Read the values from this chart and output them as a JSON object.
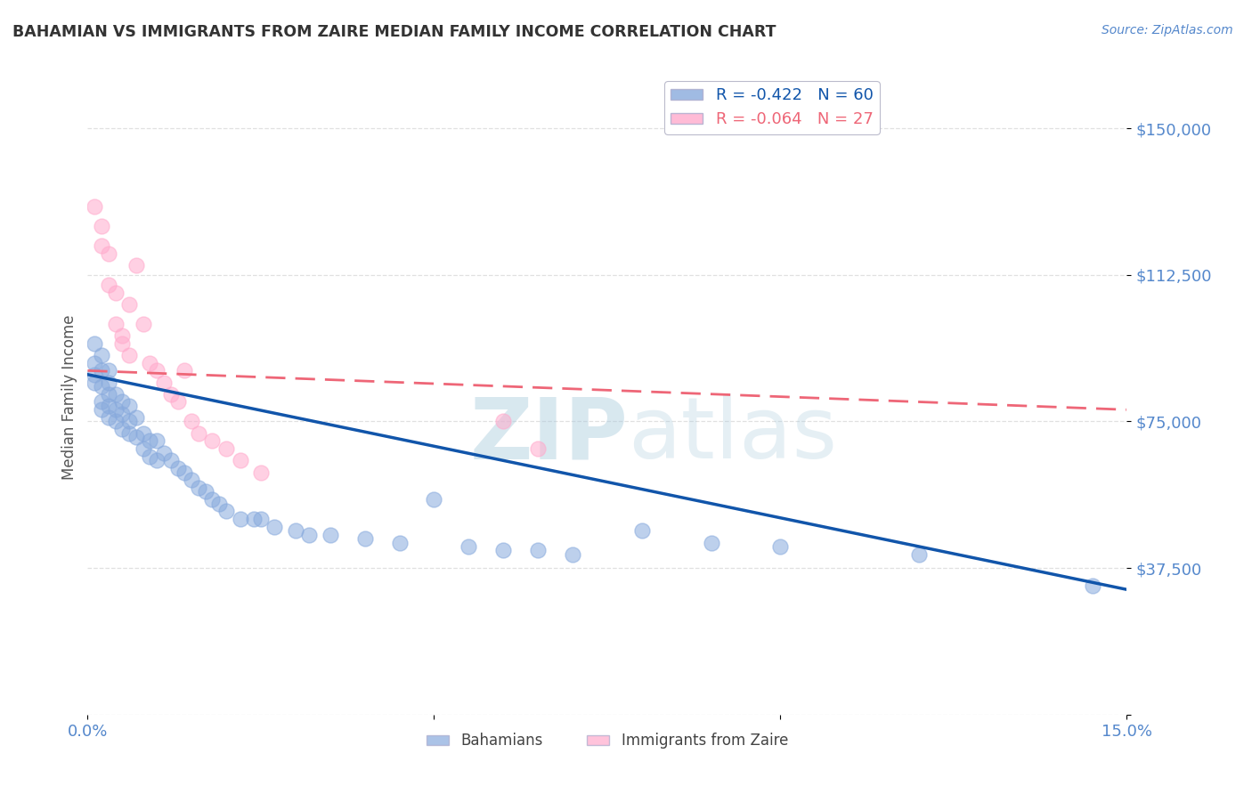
{
  "title": "BAHAMIAN VS IMMIGRANTS FROM ZAIRE MEDIAN FAMILY INCOME CORRELATION CHART",
  "source_text": "Source: ZipAtlas.com",
  "ylabel": "Median Family Income",
  "xlim": [
    0,
    0.15
  ],
  "ylim": [
    0,
    162500
  ],
  "yticks": [
    0,
    37500,
    75000,
    112500,
    150000
  ],
  "ytick_labels": [
    "",
    "$37,500",
    "$75,000",
    "$112,500",
    "$150,000"
  ],
  "xticks": [
    0.0,
    0.05,
    0.1,
    0.15
  ],
  "xtick_labels": [
    "0.0%",
    "",
    "",
    "15.0%"
  ],
  "legend_labels": [
    "Bahamians",
    "Immigrants from Zaire"
  ],
  "legend_R": [
    -0.422,
    -0.064
  ],
  "legend_N": [
    60,
    27
  ],
  "blue_color": "#88AADD",
  "pink_color": "#FFAACC",
  "trend_blue": "#1155AA",
  "trend_pink": "#EE6677",
  "title_color": "#333333",
  "axis_label_color": "#555555",
  "tick_label_color": "#5588CC",
  "grid_color": "#DDDDDD",
  "watermark_color": "#AACCDD",
  "blue_scatter_x": [
    0.001,
    0.001,
    0.001,
    0.001,
    0.002,
    0.002,
    0.002,
    0.002,
    0.002,
    0.003,
    0.003,
    0.003,
    0.003,
    0.003,
    0.004,
    0.004,
    0.004,
    0.005,
    0.005,
    0.005,
    0.006,
    0.006,
    0.006,
    0.007,
    0.007,
    0.008,
    0.008,
    0.009,
    0.009,
    0.01,
    0.01,
    0.011,
    0.012,
    0.013,
    0.014,
    0.015,
    0.016,
    0.017,
    0.018,
    0.019,
    0.02,
    0.022,
    0.024,
    0.025,
    0.027,
    0.03,
    0.032,
    0.035,
    0.04,
    0.045,
    0.05,
    0.055,
    0.06,
    0.065,
    0.07,
    0.08,
    0.09,
    0.1,
    0.12,
    0.145
  ],
  "blue_scatter_y": [
    95000,
    90000,
    87000,
    85000,
    92000,
    88000,
    84000,
    80000,
    78000,
    88000,
    85000,
    82000,
    79000,
    76000,
    82000,
    78000,
    75000,
    80000,
    77000,
    73000,
    79000,
    75000,
    72000,
    76000,
    71000,
    72000,
    68000,
    70000,
    66000,
    70000,
    65000,
    67000,
    65000,
    63000,
    62000,
    60000,
    58000,
    57000,
    55000,
    54000,
    52000,
    50000,
    50000,
    50000,
    48000,
    47000,
    46000,
    46000,
    45000,
    44000,
    55000,
    43000,
    42000,
    42000,
    41000,
    47000,
    44000,
    43000,
    41000,
    33000
  ],
  "pink_scatter_x": [
    0.001,
    0.002,
    0.002,
    0.003,
    0.003,
    0.004,
    0.004,
    0.005,
    0.005,
    0.006,
    0.006,
    0.007,
    0.008,
    0.009,
    0.01,
    0.011,
    0.012,
    0.013,
    0.014,
    0.015,
    0.016,
    0.018,
    0.02,
    0.022,
    0.025,
    0.06,
    0.065
  ],
  "pink_scatter_y": [
    130000,
    125000,
    120000,
    118000,
    110000,
    108000,
    100000,
    97000,
    95000,
    105000,
    92000,
    115000,
    100000,
    90000,
    88000,
    85000,
    82000,
    80000,
    88000,
    75000,
    72000,
    70000,
    68000,
    65000,
    62000,
    75000,
    68000
  ],
  "blue_trend_x0": 0.0,
  "blue_trend_y0": 87000,
  "blue_trend_x1": 0.15,
  "blue_trend_y1": 32000,
  "pink_trend_x0": 0.0,
  "pink_trend_y0": 88000,
  "pink_trend_x1": 0.15,
  "pink_trend_y1": 78000
}
